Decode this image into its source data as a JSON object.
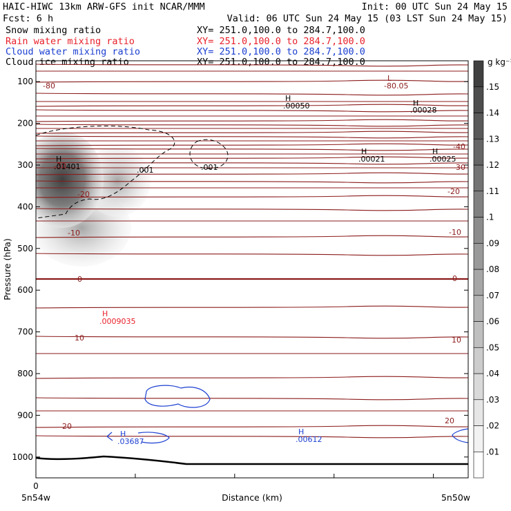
{
  "header": {
    "left_line1": "HAIC-HIWC 13km ARW-GFS init   NCAR/MMM",
    "right_line1": "Init: 00 UTC Sun 24 May 15",
    "left_line2": "Fcst:    6 h",
    "right_line2": "Valid: 06 UTC Sun 24 May 15 (03 LST Sun 24 May 15)"
  },
  "fields": [
    {
      "name": "Snow mixing ratio",
      "xy": "XY= 251.0,100.0 to 284.7,100.0",
      "color": "#000000"
    },
    {
      "name": "Rain water mixing ratio",
      "xy": "XY= 251.0,100.0 to 284.7,100.0",
      "color": "#e8202a"
    },
    {
      "name": "Cloud water mixing ratio",
      "xy": "XY= 251.0,100.0 to 284.7,100.0",
      "color": "#1b3fd1"
    },
    {
      "name": "Cloud ice mixing ratio",
      "xy": "XY= 251.0,100.0 to 284.7,100.0",
      "color": "#000000"
    }
  ],
  "chart_data": {
    "type": "heatmap",
    "title": "",
    "xlabel": "Distance (km)",
    "ylabel": "Pressure (hPa)",
    "ylim": [
      1050,
      50
    ],
    "x_tick_labels": [
      "0"
    ],
    "x_end_labels": [
      "5n54w",
      "5n50w"
    ],
    "y_ticks": [
      100,
      200,
      300,
      400,
      500,
      600,
      700,
      800,
      900,
      1000
    ],
    "colorbar": {
      "unit": "g kg⁻¹",
      "levels": [
        0.01,
        0.02,
        0.03,
        0.04,
        0.05,
        0.06,
        0.07,
        0.08,
        0.09,
        0.1,
        0.11,
        0.12,
        0.13,
        0.14,
        0.15
      ],
      "labels": [
        ".01",
        ".02",
        ".03",
        ".04",
        ".05",
        ".06",
        ".07",
        ".08",
        ".09",
        ".1",
        ".11",
        ".12",
        ".13",
        ".14",
        ".15"
      ]
    },
    "snow_max": {
      "label": "H",
      "value": ".01401"
    },
    "temperature_labels": [
      "-80",
      "-80.05",
      "-40",
      "-30",
      "-30",
      "-20",
      "-20",
      "-10",
      "-10",
      "0",
      "0",
      "10",
      "10",
      "20",
      "20"
    ],
    "ice_labels": [
      ".001",
      ".001"
    ],
    "extrema_labels": [
      {
        "letter": "L",
        "value": "-80.05",
        "color": "#8b1a1a"
      },
      {
        "letter": "H",
        "value": ".00050",
        "color": "#000000"
      },
      {
        "letter": "H",
        "value": ".00028",
        "color": "#000000"
      },
      {
        "letter": "H",
        "value": ".00021",
        "color": "#000000"
      },
      {
        "letter": "H",
        "value": ".00025",
        "color": "#000000"
      },
      {
        "letter": "H",
        "value": ".0009035",
        "color": "#e8202a"
      },
      {
        "letter": "H",
        "value": ".03687",
        "color": "#1b3fd1"
      },
      {
        "letter": "H",
        "value": ".00612",
        "color": "#1b3fd1"
      }
    ],
    "temperature_contour_color": "#8b1a1a",
    "grid": false
  }
}
